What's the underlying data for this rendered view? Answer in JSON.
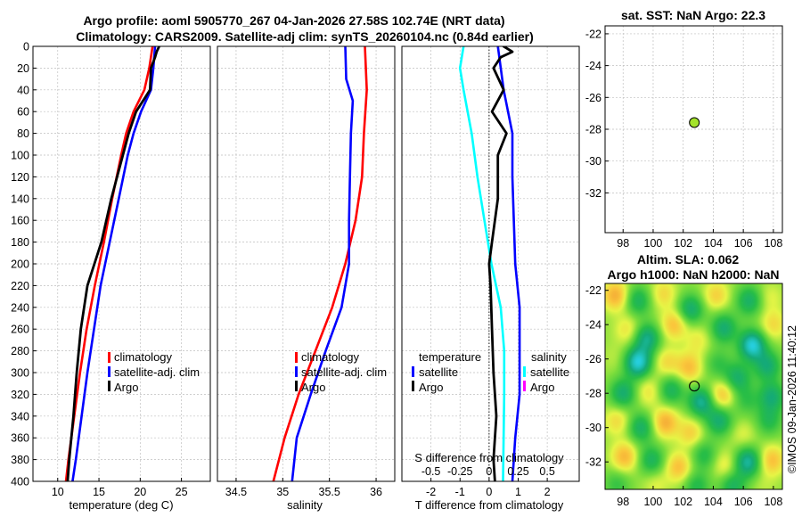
{
  "chart_data": [
    {
      "type": "line",
      "panel": "temperature",
      "title": "Argo profile: aoml 5905770_267 04-Jan-2026 27.58S 102.74E (NRT data)",
      "xlabel": "temperature (deg C)",
      "ylabel": "",
      "xlim": [
        7,
        28.5
      ],
      "ylim": [
        400,
        0
      ],
      "xticks": [
        "10",
        "15",
        "20",
        "25"
      ],
      "yticks": [
        "0",
        "20",
        "40",
        "60",
        "80",
        "100",
        "120",
        "140",
        "160",
        "180",
        "200",
        "220",
        "240",
        "260",
        "280",
        "300",
        "320",
        "340",
        "360",
        "380",
        "400"
      ],
      "legend": [
        "climatology",
        "satellite-adj. clim",
        "Argo"
      ],
      "series": [
        {
          "name": "climatology",
          "color": "#ff0000",
          "depth": [
            0,
            20,
            40,
            60,
            80,
            100,
            140,
            180,
            220,
            260,
            300,
            340,
            380,
            400
          ],
          "values": [
            21.5,
            21.1,
            20.5,
            19.2,
            18.3,
            17.7,
            16.6,
            15.6,
            14.5,
            13.5,
            12.7,
            12,
            11.3,
            11
          ]
        },
        {
          "name": "satellite-adj. clim",
          "color": "#0000ff",
          "depth": [
            0,
            20,
            40,
            60,
            80,
            100,
            140,
            180,
            220,
            260,
            300,
            340,
            380,
            400
          ],
          "values": [
            21.8,
            21.6,
            21.3,
            20.1,
            19.2,
            18.5,
            17.4,
            16.3,
            15.2,
            14.4,
            13.6,
            12.9,
            12.2,
            11.8
          ]
        },
        {
          "name": "Argo",
          "color": "#000000",
          "depth": [
            0,
            5,
            10,
            20,
            40,
            60,
            80,
            100,
            140,
            180,
            220,
            260,
            300,
            340,
            380,
            400
          ],
          "values": [
            22.3,
            22,
            21.8,
            21.3,
            21.2,
            19.5,
            18.6,
            17.9,
            16.5,
            15.3,
            13.6,
            12.8,
            12.3,
            11.9,
            11.4,
            11.2
          ]
        }
      ]
    },
    {
      "type": "line",
      "panel": "salinity",
      "title": "Climatology: CARS2009. Satellite-adj clim: synTS_20260104.nc (0.84d earlier)",
      "xlabel": "salinity",
      "xlim": [
        34.3,
        36.2
      ],
      "ylim": [
        400,
        0
      ],
      "xticks": [
        "34.5",
        "35",
        "35.5",
        "36"
      ],
      "legend": [
        "climatology",
        "satellite-adj. clim",
        "Argo"
      ],
      "series": [
        {
          "name": "climatology",
          "color": "#ff0000",
          "depth": [
            0,
            40,
            80,
            120,
            160,
            200,
            240,
            280,
            320,
            360,
            400
          ],
          "values": [
            35.88,
            35.9,
            35.87,
            35.85,
            35.78,
            35.67,
            35.53,
            35.35,
            35.17,
            35.02,
            34.9
          ]
        },
        {
          "name": "satellite-adj. clim",
          "color": "#0000ff",
          "depth": [
            0,
            30,
            50,
            80,
            120,
            160,
            200,
            240,
            280,
            320,
            360,
            400
          ],
          "values": [
            35.67,
            35.68,
            35.75,
            35.73,
            35.72,
            35.71,
            35.71,
            35.63,
            35.46,
            35.3,
            35.15,
            35.1
          ]
        }
      ]
    },
    {
      "type": "line",
      "panel": "difference",
      "xlabel": "T difference from climatology",
      "xlabel2": "S difference from climatology",
      "xlim": [
        -3,
        3.1
      ],
      "ylim": [
        400,
        0
      ],
      "xticks": [
        "-2",
        "-1",
        "0",
        "1",
        "2"
      ],
      "xticks2": [
        "-0.5",
        "-0.25",
        "0",
        "0.25",
        "0.5"
      ],
      "legend_titles": [
        "temperature",
        "salinity"
      ],
      "legend": [
        "satellite",
        "Argo",
        "satellite",
        "Argo"
      ],
      "series": [
        {
          "name": "T satellite",
          "color": "#0000ff",
          "depth": [
            0,
            40,
            80,
            120,
            160,
            200,
            240,
            280,
            320,
            360,
            400
          ],
          "values": [
            0.3,
            0.5,
            0.8,
            0.8,
            0.85,
            0.9,
            1.05,
            1.05,
            1.05,
            0.9,
            0.8
          ]
        },
        {
          "name": "T Argo",
          "color": "#000000",
          "depth": [
            0,
            5,
            10,
            20,
            40,
            60,
            80,
            100,
            140,
            180,
            200,
            220,
            260,
            300,
            340,
            380,
            400
          ],
          "values": [
            0.5,
            0.8,
            0.4,
            0.15,
            0.5,
            0.1,
            0.6,
            0.3,
            0.3,
            0.1,
            0.0,
            0.05,
            0.1,
            0.15,
            0.25,
            0.15,
            0.2
          ]
        },
        {
          "name": "S satellite",
          "color": "#00ffff",
          "depth": [
            0,
            20,
            40,
            80,
            120,
            160,
            200,
            240,
            280,
            320,
            400
          ],
          "values": [
            -0.22,
            -0.25,
            -0.22,
            -0.15,
            -0.1,
            -0.04,
            0.02,
            0.1,
            0.13,
            0.13,
            0.12
          ]
        }
      ]
    },
    {
      "type": "scatter",
      "panel": "sst-map",
      "title": "sat. SST: NaN Argo: 22.3",
      "xlim": [
        96.8,
        108.6
      ],
      "ylim": [
        -34.5,
        -21.5
      ],
      "xticks": [
        "98",
        "100",
        "102",
        "104",
        "106",
        "108"
      ],
      "yticks": [
        "-22",
        "-24",
        "-26",
        "-28",
        "-30",
        "-32"
      ],
      "points": [
        {
          "x": 102.74,
          "y": -27.58,
          "color": "#a3e22b"
        }
      ]
    },
    {
      "type": "heatmap",
      "panel": "sla-map",
      "title": "Altim. SLA: 0.062",
      "subtitle": "Argo h1000: NaN h2000: NaN",
      "xlim": [
        96.8,
        108.6
      ],
      "ylim": [
        -33.6,
        -21.6
      ],
      "xticks": [
        "98",
        "100",
        "102",
        "104",
        "106",
        "108"
      ],
      "yticks": [
        "-22",
        "-24",
        "-26",
        "-28",
        "-30",
        "-32"
      ],
      "marker": {
        "x": 102.74,
        "y": -27.58
      },
      "blobs": [
        {
          "x": 97.5,
          "y": -22.3,
          "v": 0.6
        },
        {
          "x": 99.0,
          "y": -22.6,
          "v": -0.5
        },
        {
          "x": 100.7,
          "y": -22.2,
          "v": 0.35
        },
        {
          "x": 102.5,
          "y": -23.1,
          "v": -0.6
        },
        {
          "x": 104.2,
          "y": -22.3,
          "v": 0.4
        },
        {
          "x": 106.4,
          "y": -22.6,
          "v": -0.55
        },
        {
          "x": 107.8,
          "y": -22.4,
          "v": 0.2
        },
        {
          "x": 98.3,
          "y": -24.3,
          "v": 0.3
        },
        {
          "x": 99.6,
          "y": -24.8,
          "v": -0.7
        },
        {
          "x": 101.4,
          "y": -24.0,
          "v": 0.5
        },
        {
          "x": 103.0,
          "y": -24.9,
          "v": 0.25
        },
        {
          "x": 104.7,
          "y": -24.2,
          "v": -0.6
        },
        {
          "x": 106.6,
          "y": -25.2,
          "v": -1.0
        },
        {
          "x": 108.0,
          "y": -24.0,
          "v": 0.35
        },
        {
          "x": 97.4,
          "y": -25.9,
          "v": 0.1
        },
        {
          "x": 99.0,
          "y": -26.2,
          "v": -1.0
        },
        {
          "x": 100.9,
          "y": -26.2,
          "v": 0.35
        },
        {
          "x": 102.4,
          "y": -26.5,
          "v": 0.5
        },
        {
          "x": 104.3,
          "y": -26.3,
          "v": -0.3
        },
        {
          "x": 105.6,
          "y": -27.1,
          "v": -0.55
        },
        {
          "x": 107.6,
          "y": -26.4,
          "v": -0.6
        },
        {
          "x": 98.0,
          "y": -28.0,
          "v": -0.6
        },
        {
          "x": 99.7,
          "y": -27.9,
          "v": 0.3
        },
        {
          "x": 101.2,
          "y": -27.8,
          "v": -0.5
        },
        {
          "x": 103.2,
          "y": -28.5,
          "v": -0.75
        },
        {
          "x": 104.6,
          "y": -28.1,
          "v": 0.5
        },
        {
          "x": 106.2,
          "y": -28.4,
          "v": -0.3
        },
        {
          "x": 107.9,
          "y": -28.2,
          "v": -0.6
        },
        {
          "x": 97.6,
          "y": -29.6,
          "v": 0.35
        },
        {
          "x": 99.2,
          "y": -30.0,
          "v": -0.55
        },
        {
          "x": 100.8,
          "y": -29.7,
          "v": 0.6
        },
        {
          "x": 102.5,
          "y": -30.3,
          "v": 0.4
        },
        {
          "x": 104.4,
          "y": -29.6,
          "v": -0.6
        },
        {
          "x": 106.0,
          "y": -30.4,
          "v": 0.2
        },
        {
          "x": 107.7,
          "y": -29.6,
          "v": -0.4
        },
        {
          "x": 98.1,
          "y": -31.7,
          "v": 0.55
        },
        {
          "x": 99.9,
          "y": -31.9,
          "v": -0.5
        },
        {
          "x": 101.7,
          "y": -32.3,
          "v": 0.5
        },
        {
          "x": 103.4,
          "y": -31.6,
          "v": -0.4
        },
        {
          "x": 104.8,
          "y": -32.2,
          "v": 0.3
        },
        {
          "x": 106.3,
          "y": -32.0,
          "v": -0.8
        },
        {
          "x": 107.9,
          "y": -31.9,
          "v": 0.5
        },
        {
          "x": 97.6,
          "y": -33.3,
          "v": -0.3
        },
        {
          "x": 100.2,
          "y": -33.3,
          "v": 0.2
        },
        {
          "x": 102.9,
          "y": -33.4,
          "v": -0.4
        },
        {
          "x": 105.3,
          "y": -33.4,
          "v": -0.5
        },
        {
          "x": 107.4,
          "y": -33.4,
          "v": 0.1
        }
      ]
    }
  ],
  "credit": "©IMOS 09-Jan-2026 11:40:12"
}
